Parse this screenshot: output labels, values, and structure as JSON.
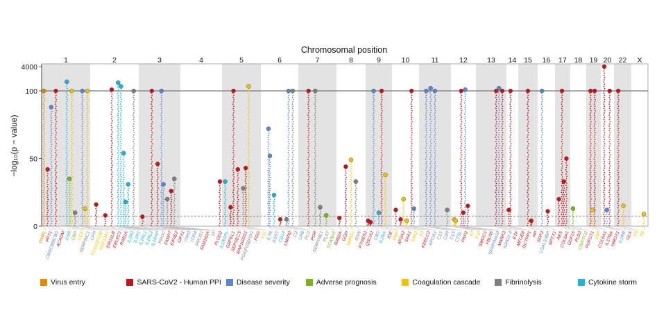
{
  "chart_data": {
    "type": "scatter",
    "title": "Chromosomal position",
    "xlabel": "Chromosomal position",
    "ylabel": "−log₁₀(p − value)",
    "y_ticks": [
      "0",
      "50",
      "100",
      "4000"
    ],
    "y_scale": "broken: linear 0–100, compressed 100–4000",
    "significance_lines": [
      100,
      7.3
    ],
    "chromosomes": [
      "1",
      "2",
      "3",
      "4",
      "5",
      "6",
      "7",
      "8",
      "9",
      "10",
      "11",
      "12",
      "13",
      "14",
      "15",
      "16",
      "17",
      "18",
      "19",
      "20",
      "22",
      "X"
    ],
    "categories": [
      {
        "name": "Virus entry",
        "color": "#e08a00"
      },
      {
        "name": "SARS-CoV2 - Human PPI",
        "color": "#c4141a"
      },
      {
        "name": "Disease severity",
        "color": "#5b86d1"
      },
      {
        "name": "Adverse prognosis",
        "color": "#7ab317"
      },
      {
        "name": "Coagulation cascade",
        "color": "#f2c200"
      },
      {
        "name": "Fibrinolysis",
        "color": "#7f7f7f"
      },
      {
        "name": "Cytokine storm",
        "color": "#1fb3d6"
      }
    ],
    "genes": [
      {
        "label": "DNM1",
        "category": 0,
        "pos": 0.02,
        "peak": 100
      },
      {
        "label": "PPT1",
        "category": 1,
        "pos": 0.1,
        "peak": 42
      },
      {
        "label": "C8A|C8B|C8G",
        "category": 2,
        "pos": 0.18,
        "peak": 88
      },
      {
        "label": "ACADM",
        "category": 1,
        "pos": 0.28,
        "peak": 100
      },
      {
        "label": "IL6R",
        "category": 6,
        "pos": 0.52,
        "peak": 400
      },
      {
        "label": "CRP",
        "category": 3,
        "pos": 0.58,
        "peak": 35
      },
      {
        "label": "CD5",
        "category": 4,
        "pos": 0.63,
        "peak": 100
      },
      {
        "label": "SERPINC1",
        "category": 5,
        "pos": 0.7,
        "peak": 10
      },
      {
        "label": "CFH",
        "category": 2,
        "pos": 0.86,
        "peak": 100
      },
      {
        "label": "F13A1|F13B",
        "category": 4,
        "pos": 0.92,
        "peak": 13
      },
      {
        "label": "F5|F13A1",
        "category": 4,
        "pos": 0.97,
        "peak": 100
      },
      {
        "label": "ERO1LB",
        "category": 1,
        "pos": 0.1,
        "peak": 16
      },
      {
        "label": "ERLEC1",
        "category": 1,
        "pos": 0.3,
        "peak": 8
      },
      {
        "label": "RAB1A",
        "category": 1,
        "pos": 0.44,
        "peak": 120
      },
      {
        "label": "IL1R2",
        "category": 6,
        "pos": 0.58,
        "peak": 350
      },
      {
        "label": "IL1R1",
        "category": 6,
        "pos": 0.64,
        "peak": 200
      },
      {
        "label": "IL1RL1",
        "category": 6,
        "pos": 0.7,
        "peak": 54
      },
      {
        "label": "IL1RL2",
        "category": 6,
        "pos": 0.74,
        "peak": 18
      },
      {
        "label": "IL1RAP",
        "category": 6,
        "pos": 0.8,
        "peak": 31
      },
      {
        "label": "PROC",
        "category": 5,
        "pos": 0.92,
        "peak": 100
      },
      {
        "label": "FKBP7",
        "category": 1,
        "pos": 0.06,
        "peak": 7
      },
      {
        "label": "EIF4E2",
        "category": 1,
        "pos": 0.3,
        "peak": 100
      },
      {
        "label": "GPX1",
        "category": 1,
        "pos": 0.45,
        "peak": 46
      },
      {
        "label": "ITIH3",
        "category": 2,
        "pos": 0.55,
        "peak": 100
      },
      {
        "label": "ITIH4",
        "category": 2,
        "pos": 0.6,
        "peak": 31
      },
      {
        "label": "PROS1",
        "category": 5,
        "pos": 0.7,
        "peak": 20
      },
      {
        "label": "FAM162A",
        "category": 1,
        "pos": 0.8,
        "peak": 26
      },
      {
        "label": "TF",
        "category": 5,
        "pos": 0.88,
        "peak": 35
      },
      {
        "label": "PLOD2",
        "category": 1,
        "pos": 0.98,
        "peak": 33
      },
      {
        "label": "IL1RAPL",
        "category": 6,
        "pos": 0.05,
        "peak": 33
      },
      {
        "label": "GRPEL1",
        "category": 1,
        "pos": 0.2,
        "peak": 14
      },
      {
        "label": "SEPSECS",
        "category": 1,
        "pos": 0.28,
        "peak": 100
      },
      {
        "label": "RAP1GDS1",
        "category": 1,
        "pos": 0.4,
        "peak": 42
      },
      {
        "label": "FGA|FGB|FGG",
        "category": 5,
        "pos": 0.55,
        "peak": 28
      },
      {
        "label": "FGG",
        "category": 1,
        "pos": 0.62,
        "peak": 43
      },
      {
        "label": "F11",
        "category": 4,
        "pos": 0.7,
        "peak": 200
      },
      {
        "label": "IL7R",
        "category": 2,
        "pos": 0.18,
        "peak": 72
      },
      {
        "label": "IL6ST",
        "category": 2,
        "pos": 0.22,
        "peak": 52
      },
      {
        "label": "CD14",
        "category": 6,
        "pos": 0.34,
        "peak": 23
      },
      {
        "label": "LMAN2",
        "category": 1,
        "pos": 0.52,
        "peak": 5
      },
      {
        "label": "C2",
        "category": 5,
        "pos": 0.7,
        "peak": 5
      },
      {
        "label": "CFB",
        "category": 2,
        "pos": 0.76,
        "peak": 100
      },
      {
        "label": "PLG",
        "category": 5,
        "pos": 0.88,
        "peak": 100
      },
      {
        "label": "POR",
        "category": 1,
        "pos": 0.25,
        "peak": 100
      },
      {
        "label": "SERPINE1",
        "category": 5,
        "pos": 0.44,
        "peak": 100
      },
      {
        "label": "PLAT",
        "category": 5,
        "pos": 0.58,
        "peak": 14
      },
      {
        "label": "SCARA5",
        "category": 3,
        "pos": 0.75,
        "peak": 8
      },
      {
        "label": "RAB2A",
        "category": 1,
        "pos": 0.06,
        "peak": 6
      },
      {
        "label": "GGH",
        "category": 1,
        "pos": 0.3,
        "peak": 44
      },
      {
        "label": "SMPD1",
        "category": 4,
        "pos": 0.5,
        "peak": 49
      },
      {
        "label": "GSN",
        "category": 5,
        "pos": 0.68,
        "peak": 33
      },
      {
        "label": "PTGES2",
        "category": 1,
        "pos": 0.05,
        "peak": 4
      },
      {
        "label": "QSOX2",
        "category": 1,
        "pos": 0.15,
        "peak": 3
      },
      {
        "label": "C8G",
        "category": 2,
        "pos": 0.28,
        "peak": 100
      },
      {
        "label": "IL2RA",
        "category": 6,
        "pos": 0.5,
        "peak": 10
      },
      {
        "label": "IDE",
        "category": 1,
        "pos": 0.62,
        "peak": 100
      },
      {
        "label": "VWF",
        "category": 4,
        "pos": 0.78,
        "peak": 38
      },
      {
        "label": "AP2A2",
        "category": 1,
        "pos": 0.1,
        "peak": 12
      },
      {
        "label": "SAA1",
        "category": 1,
        "pos": 0.3,
        "peak": 5
      },
      {
        "label": "SAA2",
        "category": 4,
        "pos": 0.42,
        "peak": 20
      },
      {
        "label": "F2",
        "category": 4,
        "pos": 0.55,
        "peak": 4
      },
      {
        "label": "KDELC2",
        "category": 1,
        "pos": 0.75,
        "peak": 100
      },
      {
        "label": "APOA1",
        "category": 2,
        "pos": 0.85,
        "peak": 13
      },
      {
        "label": "C1S",
        "category": 5,
        "pos": 0.92,
        "peak": 12
      },
      {
        "label": "C1R",
        "category": 2,
        "pos": 0.2,
        "peak": 100
      },
      {
        "label": "C1S",
        "category": 2,
        "pos": 0.35,
        "peak": 150
      },
      {
        "label": "CTSL",
        "category": 2,
        "pos": 0.5,
        "peak": 100
      },
      {
        "label": "PKP2",
        "category": 1,
        "pos": 0.7,
        "peak": 15
      },
      {
        "label": "F7",
        "category": 4,
        "pos": 0.08,
        "peak": 5
      },
      {
        "label": "F10",
        "category": 4,
        "pos": 0.15,
        "peak": 4
      },
      {
        "label": "SMOC1",
        "category": 1,
        "pos": 0.4,
        "peak": 100
      },
      {
        "label": "FBLN5",
        "category": 1,
        "pos": 0.5,
        "peak": 10
      },
      {
        "label": "SERPINA10",
        "category": 2,
        "pos": 0.58,
        "peak": 120
      },
      {
        "label": "MARK3",
        "category": 1,
        "pos": 0.68,
        "peak": 100
      },
      {
        "label": "IGHG1-4",
        "category": 2,
        "pos": 0.78,
        "peak": 150
      },
      {
        "label": "ETF",
        "category": 1,
        "pos": 0.9,
        "peak": 100
      },
      {
        "label": "MFGE8",
        "category": 1,
        "pos": 0.1,
        "peak": 12
      },
      {
        "label": "DCTPP1",
        "category": 1,
        "pos": 0.3,
        "peak": 100
      },
      {
        "label": "HP",
        "category": 1,
        "pos": 0.5,
        "peak": 100
      },
      {
        "label": "SDF2",
        "category": 1,
        "pos": 0.7,
        "peak": 4
      },
      {
        "label": "LGALS3BP",
        "category": 2,
        "pos": 0.2,
        "peak": 100
      },
      {
        "label": "NPTX1",
        "category": 1,
        "pos": 0.6,
        "peak": 11
      },
      {
        "label": "AES",
        "category": 1,
        "pos": 0.2,
        "peak": 20
      },
      {
        "label": "COL6A1",
        "category": 1,
        "pos": 0.45,
        "peak": 100
      },
      {
        "label": "GDF15",
        "category": 1,
        "pos": 0.6,
        "peak": 33
      },
      {
        "label": "PLD3",
        "category": 1,
        "pos": 0.8,
        "peak": 50
      },
      {
        "label": "CRIPTO2",
        "category": 3,
        "pos": 0.1,
        "peak": 13
      },
      {
        "label": "POFUT1",
        "category": 1,
        "pos": 0.25,
        "peak": 100
      },
      {
        "label": "LBP",
        "category": 4,
        "pos": 0.4,
        "peak": 12
      },
      {
        "label": "COL6A1",
        "category": 1,
        "pos": 0.6,
        "peak": 100
      },
      {
        "label": "IL17RA",
        "category": 1,
        "pos": 0.72,
        "peak": 100
      },
      {
        "label": "HMOX1",
        "category": 1,
        "pos": 0.2,
        "peak": 4000
      },
      {
        "label": "IL2RB",
        "category": 2,
        "pos": 0.45,
        "peak": 12
      },
      {
        "label": "GLA",
        "category": 1,
        "pos": 0.2,
        "peak": 100
      },
      {
        "label": "F9",
        "category": 4,
        "pos": 0.55,
        "peak": 15
      },
      {
        "label": "F8",
        "category": 4,
        "pos": 0.8,
        "peak": 9
      }
    ]
  }
}
